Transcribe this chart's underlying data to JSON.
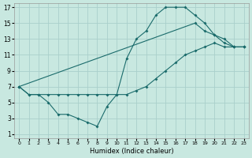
{
  "xlabel": "Humidex (Indice chaleur)",
  "bg_color": "#c8e8e0",
  "grid_color": "#aacfcb",
  "line_color": "#1a6b6b",
  "xlim": [
    -0.5,
    23.5
  ],
  "ylim": [
    0.5,
    17.5
  ],
  "xticks": [
    0,
    1,
    2,
    3,
    4,
    5,
    6,
    7,
    8,
    9,
    10,
    11,
    12,
    13,
    14,
    15,
    16,
    17,
    18,
    19,
    20,
    21,
    22,
    23
  ],
  "yticks": [
    1,
    3,
    5,
    7,
    9,
    11,
    13,
    15,
    17
  ],
  "line1_x": [
    0,
    1,
    2,
    3,
    4,
    5,
    6,
    7,
    8,
    9,
    10,
    11,
    12,
    13,
    14,
    15,
    16,
    17,
    18,
    19,
    20,
    21,
    22,
    23
  ],
  "line1_y": [
    7,
    6,
    6,
    5,
    3.5,
    3.5,
    3,
    2.5,
    2,
    4.5,
    6,
    10.5,
    13,
    14,
    16,
    17,
    17,
    17,
    16,
    15,
    13.5,
    12.5,
    12,
    12
  ],
  "line2_x": [
    0,
    1,
    2,
    3,
    4,
    5,
    6,
    7,
    8,
    9,
    10,
    11,
    12,
    13,
    14,
    15,
    16,
    17,
    18,
    19,
    20,
    21,
    22,
    23
  ],
  "line2_y": [
    7,
    6,
    6,
    6,
    6,
    6,
    6,
    6,
    6,
    6,
    6,
    6,
    6.5,
    7,
    8,
    9,
    10,
    11,
    11.5,
    12,
    12.5,
    12,
    12,
    12
  ],
  "line3_x": [
    0,
    18,
    19,
    20,
    21,
    22,
    23
  ],
  "line3_y": [
    7,
    15,
    14,
    13.5,
    13,
    12,
    12
  ]
}
